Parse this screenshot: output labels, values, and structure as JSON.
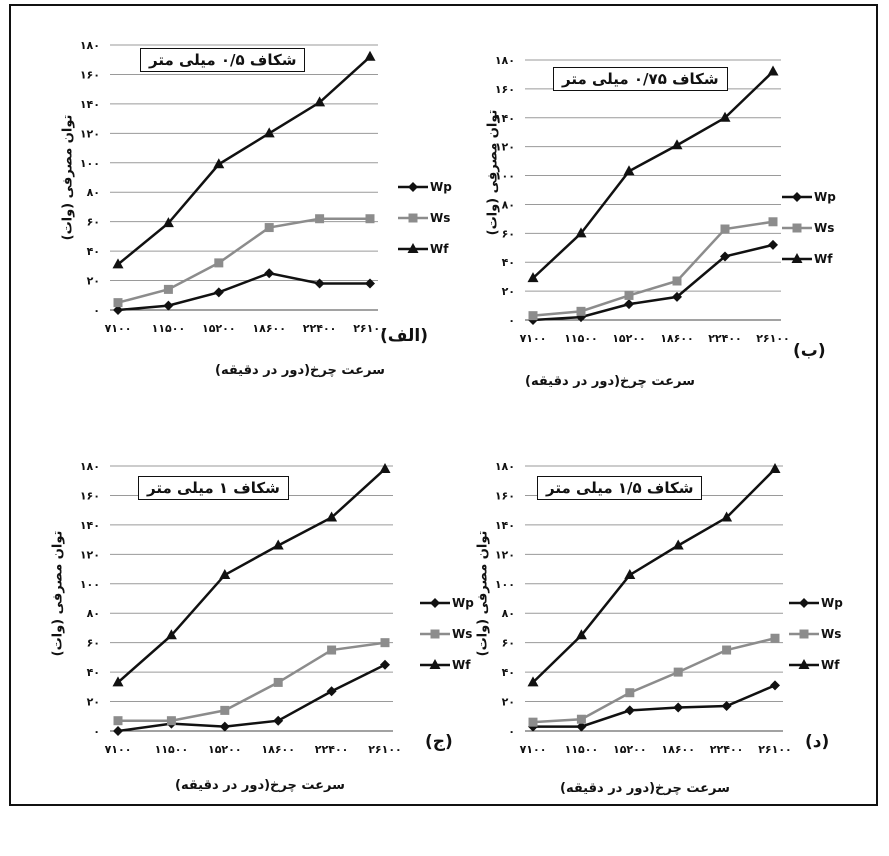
{
  "chart_data": [
    {
      "type": "line",
      "title": "شکاف ۰/۵ میلی متر",
      "panel_label": "(الف)",
      "xlabel": "سرعت چرخ(دور در دقیقه)",
      "ylabel": "توان مصرفی (وات)",
      "categories": [
        "۷۱۰۰",
        "۱۱۵۰۰",
        "۱۵۲۰۰",
        "۱۸۶۰۰",
        "۲۲۴۰۰",
        "۲۶۱۰۰"
      ],
      "ylim": [
        0,
        180
      ],
      "yticks": [
        "۰",
        "۲۰",
        "۴۰",
        "۶۰",
        "۸۰",
        "۱۰۰",
        "۱۲۰",
        "۱۴۰",
        "۱۶۰",
        "۱۸۰"
      ],
      "series": [
        {
          "name": "Wp",
          "marker": "diamond",
          "values": [
            0,
            3,
            12,
            25,
            18,
            18
          ]
        },
        {
          "name": "Ws",
          "marker": "square",
          "values": [
            5,
            14,
            32,
            56,
            62,
            62
          ]
        },
        {
          "name": "Wf",
          "marker": "triangle",
          "values": [
            31,
            59,
            99,
            120,
            141,
            172
          ]
        }
      ]
    },
    {
      "type": "line",
      "title": "شکاف ۰/۷۵ میلی متر",
      "panel_label": "(ب)",
      "xlabel": "سرعت چرخ(دور در دقیقه)",
      "ylabel": "توان مصرفی (وات)",
      "categories": [
        "۷۱۰۰",
        "۱۱۵۰۰",
        "۱۵۲۰۰",
        "۱۸۶۰۰",
        "۲۲۴۰۰",
        "۲۶۱۰۰"
      ],
      "ylim": [
        0,
        180
      ],
      "yticks": [
        "۰",
        "۲۰",
        "۴۰",
        "۶۰",
        "۸۰",
        "۱۰۰",
        "۱۲۰",
        "۱۴۰",
        "۱۶۰",
        "۱۸۰"
      ],
      "series": [
        {
          "name": "Wp",
          "marker": "diamond",
          "values": [
            0,
            2,
            11,
            16,
            44,
            52
          ]
        },
        {
          "name": "Ws",
          "marker": "square",
          "values": [
            3,
            6,
            17,
            27,
            63,
            68
          ]
        },
        {
          "name": "Wf",
          "marker": "triangle",
          "values": [
            29,
            60,
            103,
            121,
            140,
            172
          ]
        }
      ]
    },
    {
      "type": "line",
      "title": "شکاف ۱ میلی متر",
      "panel_label": "(ج)",
      "xlabel": "سرعت چرخ(دور در دقیقه)",
      "ylabel": "توان مصرفی (وات)",
      "categories": [
        "۷۱۰۰",
        "۱۱۵۰۰",
        "۱۵۲۰۰",
        "۱۸۶۰۰",
        "۲۲۴۰۰",
        "۲۶۱۰۰"
      ],
      "ylim": [
        0,
        180
      ],
      "yticks": [
        "۰",
        "۲۰",
        "۴۰",
        "۶۰",
        "۸۰",
        "۱۰۰",
        "۱۲۰",
        "۱۴۰",
        "۱۶۰",
        "۱۸۰"
      ],
      "series": [
        {
          "name": "Wp",
          "marker": "diamond",
          "values": [
            0,
            5,
            3,
            7,
            27,
            45
          ]
        },
        {
          "name": "Ws",
          "marker": "square",
          "values": [
            7,
            7,
            14,
            33,
            55,
            60
          ]
        },
        {
          "name": "Wf",
          "marker": "triangle",
          "values": [
            33,
            65,
            106,
            126,
            145,
            178
          ]
        }
      ]
    },
    {
      "type": "line",
      "title": "شکاف ۱/۵ میلی متر",
      "panel_label": "(د)",
      "xlabel": "سرعت چرخ(دور در دقیقه)",
      "ylabel": "توان مصرفی (وات)",
      "categories": [
        "۷۱۰۰",
        "۱۱۵۰۰",
        "۱۵۲۰۰",
        "۱۸۶۰۰",
        "۲۲۴۰۰",
        "۲۶۱۰۰"
      ],
      "ylim": [
        0,
        180
      ],
      "yticks": [
        "۰",
        "۲۰",
        "۴۰",
        "۶۰",
        "۸۰",
        "۱۰۰",
        "۱۲۰",
        "۱۴۰",
        "۱۶۰",
        "۱۸۰"
      ],
      "series": [
        {
          "name": "Wp",
          "marker": "diamond",
          "values": [
            3,
            3,
            14,
            16,
            17,
            31
          ]
        },
        {
          "name": "Ws",
          "marker": "square",
          "values": [
            6,
            8,
            26,
            40,
            55,
            63
          ]
        },
        {
          "name": "Wf",
          "marker": "triangle",
          "values": [
            33,
            65,
            106,
            126,
            145,
            178
          ]
        }
      ]
    }
  ],
  "colors": {
    "Wp": "#111111",
    "Ws": "#8c8c8c",
    "Wf": "#111111",
    "grid": "#9a9a9a"
  }
}
